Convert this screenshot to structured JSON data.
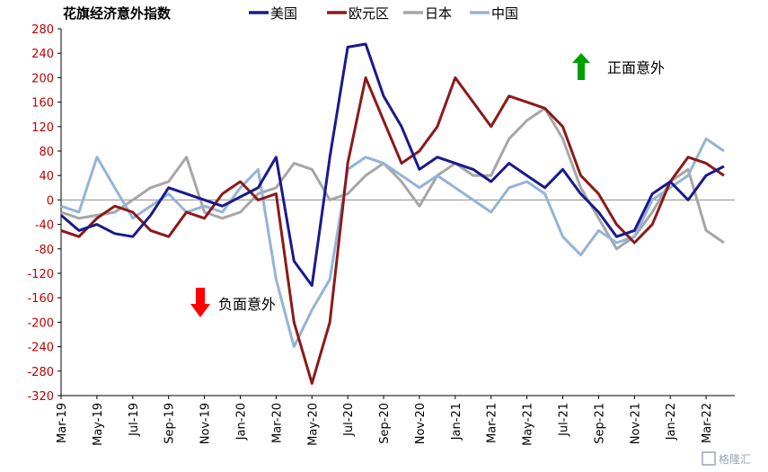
{
  "chart_data": {
    "type": "line",
    "title": "花旗经济意外指数",
    "ylim": [
      -320,
      280
    ],
    "yticks": [
      280,
      240,
      200,
      160,
      120,
      80,
      40,
      0,
      -40,
      -80,
      -120,
      -160,
      -200,
      -240,
      -280,
      -320
    ],
    "x_start": "2019-03",
    "xticks": [
      "Mar-19",
      "May-19",
      "Jul-19",
      "Sep-19",
      "Nov-19",
      "Jan-20",
      "Mar-20",
      "May-20",
      "Jul-20",
      "Sep-20",
      "Nov-20",
      "Jan-21",
      "Mar-21",
      "May-21",
      "Jul-21",
      "Sep-21",
      "Nov-21",
      "Jan-22",
      "Mar-22"
    ],
    "legend_position": "top",
    "annotations": {
      "positive": "正面意外",
      "negative": "负面意外"
    },
    "series": [
      {
        "name": "美国",
        "color": "#1a1a8c",
        "points": [
          [
            "Mar-19",
            -25
          ],
          [
            "Apr-19",
            -50
          ],
          [
            "May-19",
            -40
          ],
          [
            "Jun-19",
            -55
          ],
          [
            "Jul-19",
            -60
          ],
          [
            "Aug-19",
            -25
          ],
          [
            "Sep-19",
            20
          ],
          [
            "Oct-19",
            10
          ],
          [
            "Nov-19",
            0
          ],
          [
            "Dec-19",
            -10
          ],
          [
            "Jan-20",
            5
          ],
          [
            "Feb-20",
            20
          ],
          [
            "Mar-20",
            70
          ],
          [
            "Apr-20",
            -100
          ],
          [
            "May-20",
            -140
          ],
          [
            "Jun-20",
            70
          ],
          [
            "Jul-20",
            250
          ],
          [
            "Aug-20",
            255
          ],
          [
            "Sep-20",
            170
          ],
          [
            "Oct-20",
            120
          ],
          [
            "Nov-20",
            50
          ],
          [
            "Dec-20",
            70
          ],
          [
            "Jan-21",
            60
          ],
          [
            "Feb-21",
            50
          ],
          [
            "Mar-21",
            30
          ],
          [
            "Apr-21",
            60
          ],
          [
            "May-21",
            40
          ],
          [
            "Jun-21",
            20
          ],
          [
            "Jul-21",
            50
          ],
          [
            "Aug-21",
            10
          ],
          [
            "Sep-21",
            -20
          ],
          [
            "Oct-21",
            -60
          ],
          [
            "Nov-21",
            -50
          ],
          [
            "Dec-21",
            10
          ],
          [
            "Jan-22",
            30
          ],
          [
            "Feb-22",
            0
          ],
          [
            "Mar-22",
            40
          ],
          [
            "Apr-22",
            55
          ]
        ]
      },
      {
        "name": "欧元区",
        "color": "#8b1a1a",
        "points": [
          [
            "Mar-19",
            -50
          ],
          [
            "Apr-19",
            -60
          ],
          [
            "May-19",
            -30
          ],
          [
            "Jun-19",
            -10
          ],
          [
            "Jul-19",
            -20
          ],
          [
            "Aug-19",
            -50
          ],
          [
            "Sep-19",
            -60
          ],
          [
            "Oct-19",
            -20
          ],
          [
            "Nov-19",
            -30
          ],
          [
            "Dec-19",
            10
          ],
          [
            "Jan-20",
            30
          ],
          [
            "Feb-20",
            0
          ],
          [
            "Mar-20",
            10
          ],
          [
            "Apr-20",
            -200
          ],
          [
            "May-20",
            -300
          ],
          [
            "Jun-20",
            -200
          ],
          [
            "Jul-20",
            60
          ],
          [
            "Aug-20",
            200
          ],
          [
            "Sep-20",
            130
          ],
          [
            "Oct-20",
            60
          ],
          [
            "Nov-20",
            80
          ],
          [
            "Dec-20",
            120
          ],
          [
            "Jan-21",
            200
          ],
          [
            "Feb-21",
            160
          ],
          [
            "Mar-21",
            120
          ],
          [
            "Apr-21",
            170
          ],
          [
            "May-21",
            160
          ],
          [
            "Jun-21",
            150
          ],
          [
            "Jul-21",
            120
          ],
          [
            "Aug-21",
            40
          ],
          [
            "Sep-21",
            10
          ],
          [
            "Oct-21",
            -40
          ],
          [
            "Nov-21",
            -70
          ],
          [
            "Dec-21",
            -40
          ],
          [
            "Jan-22",
            30
          ],
          [
            "Feb-22",
            70
          ],
          [
            "Mar-22",
            60
          ],
          [
            "Apr-22",
            40
          ]
        ]
      },
      {
        "name": "日本",
        "color": "#a6a6a6",
        "points": [
          [
            "Mar-19",
            -20
          ],
          [
            "Apr-19",
            -30
          ],
          [
            "May-19",
            -25
          ],
          [
            "Jun-19",
            -20
          ],
          [
            "Jul-19",
            0
          ],
          [
            "Aug-19",
            20
          ],
          [
            "Sep-19",
            30
          ],
          [
            "Oct-19",
            70
          ],
          [
            "Nov-19",
            -20
          ],
          [
            "Dec-19",
            -30
          ],
          [
            "Jan-20",
            -20
          ],
          [
            "Feb-20",
            10
          ],
          [
            "Mar-20",
            20
          ],
          [
            "Apr-20",
            60
          ],
          [
            "May-20",
            50
          ],
          [
            "Jun-20",
            0
          ],
          [
            "Jul-20",
            10
          ],
          [
            "Aug-20",
            40
          ],
          [
            "Sep-20",
            60
          ],
          [
            "Oct-20",
            30
          ],
          [
            "Nov-20",
            -10
          ],
          [
            "Dec-20",
            40
          ],
          [
            "Jan-21",
            60
          ],
          [
            "Feb-21",
            40
          ],
          [
            "Mar-21",
            40
          ],
          [
            "Apr-21",
            100
          ],
          [
            "May-21",
            130
          ],
          [
            "Jun-21",
            150
          ],
          [
            "Jul-21",
            100
          ],
          [
            "Aug-21",
            20
          ],
          [
            "Sep-21",
            -30
          ],
          [
            "Oct-21",
            -80
          ],
          [
            "Nov-21",
            -60
          ],
          [
            "Dec-21",
            -20
          ],
          [
            "Jan-22",
            30
          ],
          [
            "Feb-22",
            50
          ],
          [
            "Mar-22",
            -50
          ],
          [
            "Apr-22",
            -70
          ]
        ]
      },
      {
        "name": "中国",
        "color": "#95b3d7",
        "points": [
          [
            "Mar-19",
            -10
          ],
          [
            "Apr-19",
            -20
          ],
          [
            "May-19",
            70
          ],
          [
            "Jun-19",
            20
          ],
          [
            "Jul-19",
            -30
          ],
          [
            "Aug-19",
            -10
          ],
          [
            "Sep-19",
            10
          ],
          [
            "Oct-19",
            -20
          ],
          [
            "Nov-19",
            -10
          ],
          [
            "Dec-19",
            -20
          ],
          [
            "Jan-20",
            20
          ],
          [
            "Feb-20",
            50
          ],
          [
            "Mar-20",
            -130
          ],
          [
            "Apr-20",
            -240
          ],
          [
            "May-20",
            -180
          ],
          [
            "Jun-20",
            -130
          ],
          [
            "Jul-20",
            50
          ],
          [
            "Aug-20",
            70
          ],
          [
            "Sep-20",
            60
          ],
          [
            "Oct-20",
            40
          ],
          [
            "Nov-20",
            20
          ],
          [
            "Dec-20",
            40
          ],
          [
            "Jan-21",
            20
          ],
          [
            "Feb-21",
            0
          ],
          [
            "Mar-21",
            -20
          ],
          [
            "Apr-21",
            20
          ],
          [
            "May-21",
            30
          ],
          [
            "Jun-21",
            10
          ],
          [
            "Jul-21",
            -60
          ],
          [
            "Aug-21",
            -90
          ],
          [
            "Sep-21",
            -50
          ],
          [
            "Oct-21",
            -70
          ],
          [
            "Nov-21",
            -60
          ],
          [
            "Dec-21",
            0
          ],
          [
            "Jan-22",
            20
          ],
          [
            "Feb-22",
            40
          ],
          [
            "Mar-22",
            100
          ],
          [
            "Apr-22",
            80
          ]
        ]
      }
    ]
  },
  "watermark": "格隆汇"
}
